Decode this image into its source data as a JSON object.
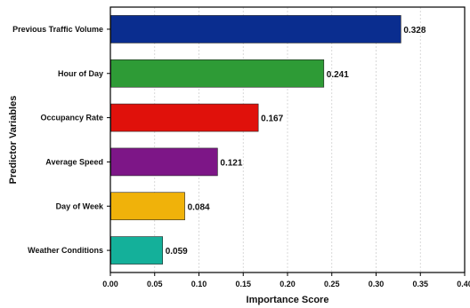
{
  "chart_data": {
    "type": "bar",
    "orientation": "horizontal",
    "categories": [
      "Previous Traffic Volume",
      "Hour of Day",
      "Occupancy Rate",
      "Average Speed",
      "Day of Week",
      "Weather Conditions"
    ],
    "values": [
      0.328,
      0.241,
      0.167,
      0.121,
      0.084,
      0.059
    ],
    "value_labels": [
      "0.328",
      "0.241",
      "0.167",
      "0.121",
      "0.084",
      "0.059"
    ],
    "colors": [
      "#0a2d8f",
      "#2e9b36",
      "#e0110b",
      "#7d1687",
      "#f0b20a",
      "#14b09a"
    ],
    "xlabel": "Importance Score",
    "ylabel": "Predictor Variables",
    "xlim": [
      0,
      0.4
    ],
    "xticks": [
      0,
      0.05,
      0.1,
      0.15,
      0.2,
      0.25,
      0.3,
      0.35,
      0.4
    ],
    "xtick_labels": [
      "0.00",
      "0.05",
      "0.10",
      "0.15",
      "0.20",
      "0.25",
      "0.30",
      "0.35",
      "0.40"
    ],
    "grid": "vertical dotted"
  }
}
